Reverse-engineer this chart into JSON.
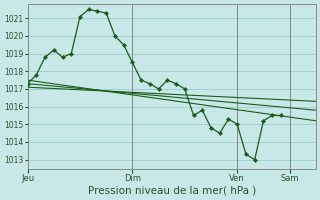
{
  "bg_color": "#c8e8e8",
  "grid_color": "#a0cccc",
  "line_color": "#1a5c1a",
  "xlabel": "Pression niveau de la mer( hPa )",
  "ylim": [
    1012.5,
    1021.8
  ],
  "yticks": [
    1013,
    1014,
    1015,
    1016,
    1017,
    1018,
    1019,
    1020,
    1021
  ],
  "xlim": [
    0,
    264
  ],
  "day_ticks": [
    0,
    96,
    192,
    240
  ],
  "day_labels": [
    "Jeu",
    "Dim",
    "Ven",
    "Sam"
  ],
  "s1x": [
    0,
    8,
    16,
    24,
    32,
    40,
    48,
    56,
    64,
    72,
    80,
    88,
    96,
    104,
    112,
    120,
    128,
    136,
    144,
    152,
    160,
    168,
    176,
    184,
    192,
    200,
    208,
    216,
    224,
    232
  ],
  "s1y": [
    1017.3,
    1017.8,
    1018.8,
    1019.2,
    1018.8,
    1019.0,
    1021.1,
    1021.5,
    1021.4,
    1021.3,
    1020.0,
    1019.5,
    1018.5,
    1017.5,
    1017.3,
    1017.0,
    1017.5,
    1017.3,
    1017.0,
    1015.5,
    1015.8,
    1014.8,
    1014.5,
    1015.3,
    1015.0,
    1013.3,
    1013.0,
    1015.2,
    1015.5,
    1015.5
  ],
  "trend1_x": [
    0,
    264
  ],
  "trend1_y": [
    1017.5,
    1015.2
  ],
  "trend2_x": [
    0,
    264
  ],
  "trend2_y": [
    1017.3,
    1015.8
  ],
  "trend3_x": [
    0,
    264
  ],
  "trend3_y": [
    1017.1,
    1016.3
  ],
  "vline_color": "#888888",
  "spine_color": "#888888",
  "tick_label_color": "#2d4d2d",
  "ytick_fontsize": 5.5,
  "xtick_fontsize": 6.0,
  "xlabel_fontsize": 7.5
}
